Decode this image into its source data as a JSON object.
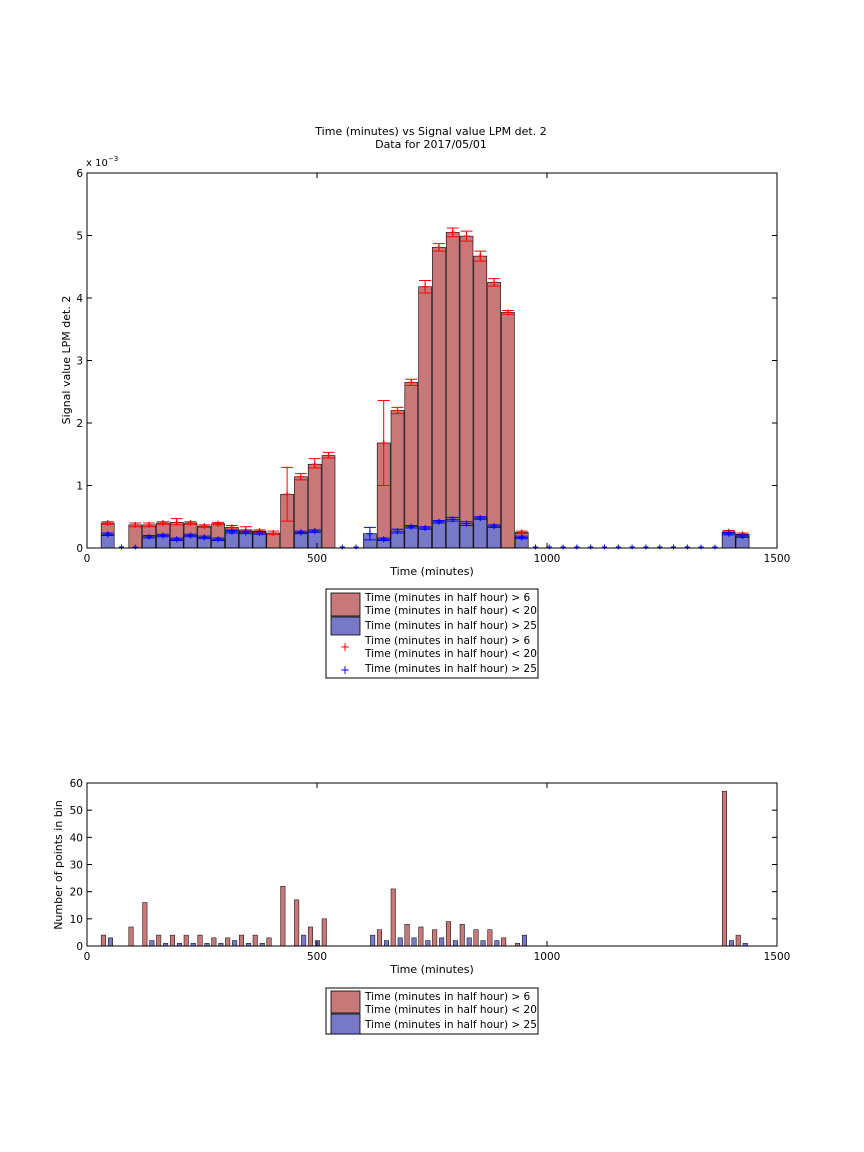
{
  "chart_data": [
    {
      "type": "bar",
      "title": "Time (minutes) vs Signal value LPM det. 2",
      "subtitle": "Data for 2017/05/01",
      "xlabel": "Time (minutes)",
      "ylabel": "Signal value LPM det. 2",
      "xlim": [
        0,
        1500
      ],
      "ylim": [
        0,
        0.006
      ],
      "x_ticks": [
        "0",
        "500",
        "1000",
        "1500"
      ],
      "y_ticks": [
        "0",
        "1",
        "2",
        "3",
        "4",
        "5",
        "6"
      ],
      "y_exponent_label": "x 10",
      "y_exponent_power": "−3",
      "grid": false,
      "legend_placement": "below",
      "legend": [
        "Time (minutes in half hour) > 6\nTime (minutes in half hour) < 20",
        "Time (minutes in half hour) > 25",
        "Time (minutes in half hour) > 6\nTime (minutes in half hour) < 20",
        "Time (minutes in half hour) > 25"
      ],
      "colors": {
        "series1_bar": "#c87878",
        "series2_bar": "#7878c8",
        "series1_marker": "#ff0000",
        "series2_marker": "#0000ff"
      },
      "series": [
        {
          "name": "Time (minutes in half hour) > 6 / Time (minutes in half hour) < 20",
          "x": [
            45,
            105,
            135,
            165,
            195,
            225,
            255,
            285,
            315,
            345,
            375,
            405,
            435,
            465,
            495,
            525,
            645,
            675,
            705,
            735,
            765,
            795,
            825,
            855,
            885,
            915,
            945,
            1395,
            1425
          ],
          "values": [
            0.0004,
            0.00037,
            0.00037,
            0.0004,
            0.00041,
            0.0004,
            0.00035,
            0.00039,
            0.00033,
            0.00029,
            0.00027,
            0.00024,
            0.00086,
            0.00114,
            0.00134,
            0.00148,
            0.00168,
            0.0022,
            0.00265,
            0.00418,
            0.00481,
            0.00505,
            0.00499,
            0.00467,
            0.00425,
            0.00377,
            0.00025,
            0.00026,
            0.00022
          ],
          "err_low": [
            2e-05,
            3e-05,
            3e-05,
            2e-05,
            4e-05,
            2e-05,
            2e-05,
            2e-05,
            3e-05,
            3e-05,
            2e-05,
            2e-05,
            0.00043,
            5e-05,
            6e-05,
            4e-05,
            0.00068,
            5e-05,
            5e-05,
            0.0001,
            6e-05,
            7e-05,
            8e-05,
            8e-05,
            6e-05,
            3e-05,
            2e-05,
            2e-05,
            2e-05
          ],
          "err_high": [
            2e-05,
            3e-05,
            3e-05,
            2e-05,
            6e-05,
            2e-05,
            2e-05,
            2e-05,
            3e-05,
            5e-05,
            2e-05,
            3e-05,
            0.00043,
            5e-05,
            9e-05,
            5e-05,
            0.00068,
            5e-05,
            5e-05,
            0.0001,
            6e-05,
            7e-05,
            8e-05,
            8e-05,
            6e-05,
            3e-05,
            2e-05,
            2e-05,
            2e-05
          ]
        },
        {
          "name": "Time (minutes in half hour) > 25",
          "x": [
            45,
            135,
            165,
            195,
            225,
            255,
            285,
            315,
            345,
            375,
            465,
            495,
            615,
            645,
            675,
            705,
            735,
            765,
            795,
            825,
            855,
            885,
            945,
            1395,
            1425
          ],
          "values": [
            0.00022,
            0.00018,
            0.0002,
            0.00014,
            0.0002,
            0.00017,
            0.00014,
            0.00026,
            0.00025,
            0.00024,
            0.00025,
            0.00027,
            0.00023,
            0.00014,
            0.00027,
            0.00034,
            0.00032,
            0.00042,
            0.00046,
            0.00039,
            0.00048,
            0.00035,
            0.00017,
            0.00023,
            0.00019
          ],
          "err_low": [
            2e-05,
            2e-05,
            2e-05,
            2e-05,
            2e-05,
            2e-05,
            2e-05,
            2e-05,
            2e-05,
            2e-05,
            2e-05,
            2e-05,
            0.0001,
            2e-05,
            3e-05,
            2e-05,
            2e-05,
            2e-05,
            3e-05,
            3e-05,
            2e-05,
            2e-05,
            2e-05,
            2e-05,
            2e-05
          ],
          "err_high": [
            2e-05,
            2e-05,
            2e-05,
            2e-05,
            2e-05,
            2e-05,
            2e-05,
            2e-05,
            2e-05,
            2e-05,
            2e-05,
            2e-05,
            0.0001,
            2e-05,
            3e-05,
            2e-05,
            2e-05,
            2e-05,
            3e-05,
            3e-05,
            2e-05,
            2e-05,
            2e-05,
            2e-05,
            2e-05
          ]
        }
      ],
      "zero_markers_x": [
        75,
        105,
        555,
        585,
        975,
        1005,
        1035,
        1065,
        1095,
        1125,
        1155,
        1185,
        1215,
        1245,
        1275,
        1305,
        1335,
        1365
      ]
    },
    {
      "type": "bar",
      "title": "",
      "xlabel": "Time (minutes)",
      "ylabel": "Number of points in bin",
      "xlim": [
        0,
        1500
      ],
      "ylim": [
        0,
        60
      ],
      "x_ticks": [
        "0",
        "500",
        "1000",
        "1500"
      ],
      "y_ticks": [
        "0",
        "10",
        "20",
        "30",
        "40",
        "50",
        "60"
      ],
      "grid": false,
      "legend_placement": "below",
      "legend": [
        "Time (minutes in half hour) > 6\nTime (minutes in half hour) < 20",
        "Time (minutes in half hour) > 25"
      ],
      "colors": {
        "series1_bar": "#c87878",
        "series2_bar": "#7878c8"
      },
      "series": [
        {
          "name": "Time (minutes in half hour) > 6 / Time (minutes in half hour) < 20",
          "x": [
            45,
            105,
            135,
            165,
            195,
            225,
            255,
            285,
            315,
            345,
            375,
            405,
            435,
            465,
            495,
            525,
            645,
            675,
            705,
            735,
            765,
            795,
            825,
            855,
            885,
            915,
            1395,
            1425
          ],
          "values": [
            4,
            7,
            16,
            4,
            4,
            4,
            4,
            3,
            3,
            4,
            4,
            3,
            22,
            17,
            7,
            10,
            6,
            21,
            8,
            7,
            6,
            9,
            8,
            6,
            6,
            3,
            57,
            4
          ]
        },
        {
          "name": "Time (minutes in half hour) > 25",
          "x": [
            45,
            135,
            165,
            195,
            225,
            255,
            285,
            315,
            345,
            375,
            465,
            495,
            615,
            645,
            675,
            705,
            735,
            765,
            795,
            825,
            855,
            885,
            945,
            1395,
            1425
          ],
          "values": [
            3,
            2,
            1,
            1,
            1,
            1,
            1,
            2,
            1,
            1,
            4,
            2,
            4,
            2,
            3,
            3,
            2,
            3,
            2,
            3,
            2,
            2,
            4,
            2,
            1
          ]
        }
      ],
      "extra_bars": [
        {
          "x": 945,
          "value": 1,
          "series": 0
        }
      ]
    }
  ]
}
